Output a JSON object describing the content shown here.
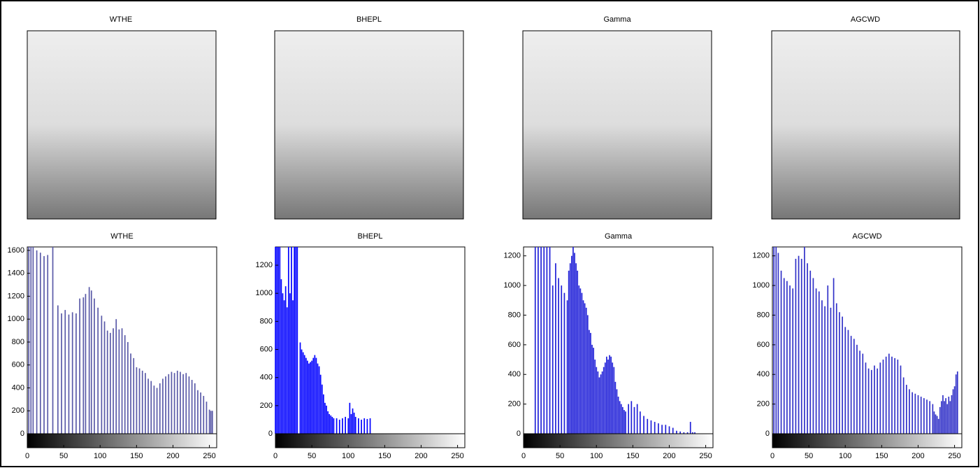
{
  "images": [
    {
      "title": "WTHE"
    },
    {
      "title": "BHEPL"
    },
    {
      "title": "Gamma"
    },
    {
      "title": "AGCWD"
    }
  ],
  "chart_data": [
    {
      "type": "bar",
      "title": "WTHE",
      "color": "#5a5aa8",
      "xlim": [
        0,
        260
      ],
      "xticks": [
        0,
        50,
        100,
        150,
        200,
        250
      ],
      "ylim": [
        0,
        1630
      ],
      "yticks": [
        0,
        200,
        400,
        600,
        800,
        1000,
        1200,
        1400,
        1600
      ],
      "x": [
        2,
        5,
        8,
        13,
        18,
        23,
        28,
        35,
        42,
        47,
        52,
        57,
        62,
        67,
        72,
        77,
        80,
        85,
        88,
        92,
        97,
        102,
        106,
        110,
        114,
        118,
        122,
        126,
        130,
        134,
        138,
        142,
        146,
        150,
        154,
        158,
        162,
        166,
        170,
        174,
        178,
        182,
        186,
        190,
        194,
        198,
        202,
        206,
        210,
        214,
        218,
        222,
        226,
        230,
        234,
        238,
        242,
        246,
        250,
        252,
        254
      ],
      "values": [
        1630,
        1630,
        1630,
        1600,
        1580,
        1550,
        1560,
        1630,
        1120,
        1050,
        1080,
        1040,
        1060,
        1050,
        1180,
        1190,
        1220,
        1280,
        1250,
        1180,
        1100,
        1030,
        980,
        900,
        880,
        920,
        1000,
        910,
        920,
        860,
        800,
        700,
        660,
        580,
        570,
        550,
        530,
        480,
        460,
        420,
        400,
        440,
        480,
        500,
        520,
        540,
        530,
        550,
        540,
        520,
        530,
        500,
        470,
        440,
        380,
        360,
        330,
        280,
        210,
        200,
        200
      ]
    },
    {
      "type": "bar",
      "title": "BHEPL",
      "color": "#0000ff",
      "xlim": [
        0,
        260
      ],
      "xticks": [
        0,
        50,
        100,
        150,
        200,
        250
      ],
      "ylim": [
        0,
        1330
      ],
      "yticks": [
        0,
        200,
        400,
        600,
        800,
        1000,
        1200
      ],
      "x": [
        0,
        2,
        4,
        6,
        8,
        10,
        12,
        14,
        16,
        18,
        20,
        22,
        24,
        26,
        28,
        30,
        34,
        36,
        38,
        40,
        42,
        44,
        46,
        48,
        50,
        52,
        54,
        56,
        58,
        60,
        62,
        64,
        66,
        68,
        70,
        72,
        74,
        76,
        78,
        80,
        84,
        88,
        92,
        96,
        100,
        102,
        104,
        106,
        108,
        110,
        114,
        118,
        122,
        126,
        130
      ],
      "values": [
        1330,
        1330,
        1330,
        1330,
        1100,
        1000,
        950,
        1050,
        900,
        1330,
        1000,
        1330,
        950,
        1330,
        1330,
        1330,
        650,
        600,
        580,
        560,
        540,
        520,
        500,
        510,
        520,
        540,
        560,
        540,
        500,
        480,
        420,
        350,
        280,
        220,
        200,
        160,
        140,
        130,
        120,
        110,
        110,
        100,
        110,
        120,
        110,
        220,
        140,
        180,
        150,
        120,
        110,
        100,
        110,
        105,
        110
      ]
    },
    {
      "type": "bar",
      "title": "Gamma",
      "color": "#2020d8",
      "xlim": [
        0,
        260
      ],
      "xticks": [
        0,
        50,
        100,
        150,
        200,
        250
      ],
      "ylim": [
        0,
        1260
      ],
      "yticks": [
        0,
        200,
        400,
        600,
        800,
        1000,
        1200
      ],
      "x": [
        16,
        20,
        24,
        28,
        32,
        36,
        40,
        44,
        48,
        52,
        56,
        60,
        62,
        64,
        66,
        68,
        70,
        72,
        74,
        76,
        78,
        80,
        82,
        84,
        86,
        88,
        90,
        92,
        94,
        96,
        98,
        100,
        102,
        104,
        106,
        108,
        110,
        112,
        114,
        116,
        118,
        120,
        122,
        124,
        126,
        128,
        130,
        132,
        134,
        136,
        138,
        140,
        144,
        148,
        152,
        156,
        160,
        165,
        170,
        175,
        180,
        185,
        190,
        195,
        200,
        205,
        210,
        215,
        220,
        225,
        229,
        232,
        235
      ],
      "values": [
        1260,
        1260,
        1260,
        1260,
        1260,
        1260,
        1000,
        1150,
        1050,
        1000,
        950,
        900,
        1100,
        1150,
        1200,
        1260,
        1220,
        1150,
        1100,
        1000,
        980,
        950,
        900,
        880,
        850,
        800,
        700,
        680,
        600,
        580,
        500,
        450,
        420,
        380,
        400,
        420,
        450,
        480,
        520,
        500,
        530,
        520,
        480,
        450,
        350,
        300,
        250,
        220,
        200,
        180,
        160,
        150,
        200,
        220,
        180,
        200,
        150,
        120,
        100,
        90,
        80,
        70,
        60,
        60,
        50,
        40,
        20,
        15,
        10,
        10,
        80,
        10,
        10
      ]
    },
    {
      "type": "bar",
      "title": "AGCWD",
      "color": "#3232c8",
      "xlim": [
        0,
        260
      ],
      "xticks": [
        0,
        50,
        100,
        150,
        200,
        250
      ],
      "ylim": [
        0,
        1260
      ],
      "yticks": [
        0,
        200,
        400,
        600,
        800,
        1000,
        1200
      ],
      "x": [
        2,
        5,
        8,
        12,
        16,
        20,
        24,
        28,
        32,
        36,
        40,
        44,
        48,
        52,
        56,
        60,
        64,
        68,
        72,
        76,
        80,
        84,
        88,
        92,
        96,
        100,
        104,
        108,
        112,
        116,
        120,
        124,
        128,
        132,
        136,
        140,
        144,
        148,
        152,
        156,
        160,
        164,
        168,
        172,
        176,
        180,
        184,
        188,
        192,
        196,
        200,
        204,
        208,
        212,
        216,
        220,
        222,
        224,
        226,
        228,
        230,
        232,
        234,
        236,
        238,
        240,
        242,
        244,
        246,
        248,
        250,
        252,
        254
      ],
      "values": [
        1260,
        1260,
        1220,
        1100,
        1050,
        1030,
        1000,
        980,
        1180,
        1200,
        1180,
        1260,
        1150,
        1100,
        1050,
        980,
        960,
        900,
        860,
        1000,
        850,
        1050,
        880,
        820,
        790,
        720,
        700,
        660,
        640,
        600,
        560,
        540,
        480,
        440,
        430,
        460,
        440,
        480,
        500,
        520,
        540,
        520,
        510,
        500,
        460,
        380,
        330,
        300,
        280,
        270,
        260,
        250,
        240,
        230,
        220,
        200,
        150,
        130,
        120,
        100,
        180,
        220,
        260,
        220,
        240,
        200,
        250,
        220,
        260,
        300,
        320,
        400,
        420
      ]
    }
  ]
}
